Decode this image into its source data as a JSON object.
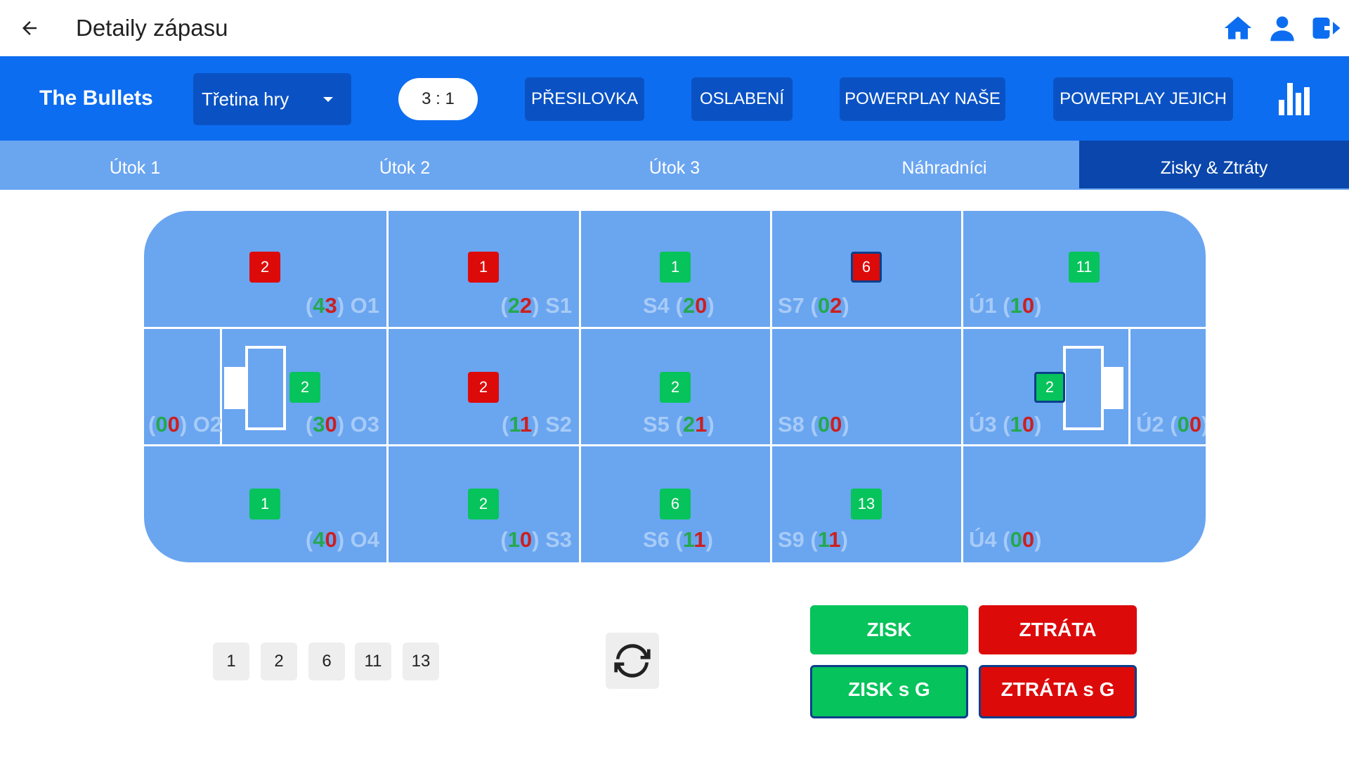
{
  "appbar": {
    "title": "Detaily zápasu",
    "icons": [
      "arrow-left-icon",
      "home-icon",
      "user-icon",
      "logout-icon"
    ]
  },
  "toolbar": {
    "team": "The Bullets",
    "period": "Třetina hry",
    "score": "3 : 1",
    "buttons": [
      "PŘESILOVKA",
      "OSLABENÍ",
      "POWERPLAY NAŠE",
      "POWERPLAY JEJICH"
    ]
  },
  "tabs": [
    "Útok 1",
    "Útok 2",
    "Útok 3",
    "Náhradníci",
    "Zisky & Ztráty"
  ],
  "active_tab": "Zisky & Ztráty",
  "zones": {
    "O1": {
      "name": "O1",
      "g": "4",
      "r": "3",
      "badge": "2"
    },
    "S1": {
      "name": "S1",
      "g": "2",
      "r": "2",
      "badge": "1"
    },
    "S4": {
      "name": "S4",
      "g": "2",
      "r": "0",
      "badge": "1"
    },
    "S7": {
      "name": "S7",
      "g": "0",
      "r": "2",
      "badge": "6"
    },
    "U1": {
      "name": "Ú1",
      "g": "1",
      "r": "0",
      "badge": "11"
    },
    "O2": {
      "name": "O2",
      "g": "0",
      "r": "0"
    },
    "O3": {
      "name": "O3",
      "g": "3",
      "r": "0",
      "badge": "2"
    },
    "S2": {
      "name": "S2",
      "g": "1",
      "r": "1",
      "badge": "2"
    },
    "S5": {
      "name": "S5",
      "g": "2",
      "r": "1",
      "badge": "2"
    },
    "S8": {
      "name": "S8",
      "g": "0",
      "r": "0"
    },
    "U3": {
      "name": "Ú3",
      "g": "1",
      "r": "0",
      "badge": "2"
    },
    "U2": {
      "name": "Ú2",
      "g": "0",
      "r": "0"
    },
    "O4": {
      "name": "O4",
      "g": "4",
      "r": "0",
      "badge": "1"
    },
    "S3": {
      "name": "S3",
      "g": "1",
      "r": "0",
      "badge": "2"
    },
    "S6": {
      "name": "S6",
      "g": "1",
      "r": "1",
      "badge": "6"
    },
    "S9": {
      "name": "S9",
      "g": "1",
      "r": "1",
      "badge": "13"
    },
    "U4": {
      "name": "Ú4",
      "g": "0",
      "r": "0"
    }
  },
  "badge_colors": {
    "green": "#06c35b",
    "red": "#dd0a0a"
  },
  "players": [
    "1",
    "2",
    "6",
    "11",
    "13"
  ],
  "actions": {
    "gain": "ZISK",
    "loss": "ZTRÁTA",
    "gain_goal": "ZISK s G",
    "loss_goal": "ZTRÁTA s G"
  }
}
